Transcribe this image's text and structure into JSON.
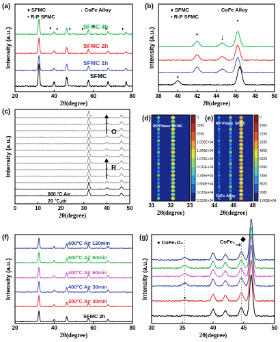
{
  "chart_data": [
    {
      "panel": "(a)",
      "type": "line",
      "xlabel": "2θ(degree)",
      "ylabel": "Intensity (a.u.)",
      "xlim": [
        20,
        80
      ],
      "xticks": [
        "20",
        "40",
        "60",
        "80"
      ],
      "legend": [
        {
          "symbol": "♦",
          "label": "SFMC"
        },
        {
          "symbol": "↓",
          "label": "CoFe Alloy"
        },
        {
          "symbol": "•",
          "label": "R-P SFMC"
        }
      ],
      "series": [
        {
          "name": "SFMC 4h",
          "color": "#22b14c"
        },
        {
          "name": "SFMC 2h",
          "color": "#e8262b"
        },
        {
          "name": "SFMC 1h",
          "color": "#3f51b5"
        },
        {
          "name": "SFMC",
          "color": "#000000"
        }
      ],
      "peaks_deg": [
        32.2,
        40.0,
        46.4,
        57.5,
        67.5,
        76.8
      ]
    },
    {
      "panel": "(b)",
      "type": "line",
      "xlabel": "2θ(degree)",
      "ylabel": "Intensity (a.u.)",
      "xlim": [
        38,
        50
      ],
      "xticks": [
        "38",
        "40",
        "42",
        "44",
        "46",
        "48",
        "50"
      ],
      "legend": [
        {
          "symbol": "♦",
          "label": "SFMC"
        },
        {
          "symbol": "↓",
          "label": "CoFe Alloy"
        },
        {
          "symbol": "•",
          "label": "R-P SFMC"
        }
      ],
      "series_colors": [
        "#22b14c",
        "#e8262b",
        "#3f51b5",
        "#000000"
      ],
      "peaks_deg": [
        40.0,
        42.0,
        44.6,
        46.2
      ]
    },
    {
      "panel": "(c)",
      "type": "line",
      "xlabel": "2θ(degree)",
      "ylabel": "Intensity (a.u.)",
      "xlim": [
        0,
        50
      ],
      "xticks": [
        "0",
        "10",
        "20",
        "30",
        "40",
        "50"
      ],
      "labels": {
        "top_arrow": "O",
        "mid_arrow": "R",
        "air800": "800 °C Air",
        "air20": "20 °C air"
      },
      "curve_count": 13
    },
    {
      "panel": "(d)",
      "type": "heatmap",
      "xlabel": "2θ(degree)",
      "xticks": [
        "31",
        "32",
        "33"
      ],
      "annotations": [
        "RP Phase",
        "SFMC"
      ],
      "colorbar": [
        "0",
        "3350",
        "6700",
        "1.005E+04",
        "1.340E+04",
        "1.675E+04",
        "2.010E+04",
        "2.345E+04",
        "2.680E+04",
        "3.015E+04",
        "3.350E+04"
      ]
    },
    {
      "panel": "(e)",
      "type": "heatmap",
      "xlabel": "2θ(degree)",
      "xticks": [
        "44",
        "46",
        "48"
      ],
      "annotations": [
        "RP Phase",
        "SFMC",
        "CoFe Alloy"
      ],
      "colorbar": [
        "0",
        "1065",
        "2130",
        "3195",
        "4260",
        "5325",
        "6390",
        "7455",
        "8520",
        "9585",
        "1.065E+04"
      ]
    },
    {
      "panel": "(f)",
      "type": "line",
      "xlabel": "2θ(degree)",
      "ylabel": "Intensity (a.u.)",
      "xlim": [
        20,
        80
      ],
      "xticks": [
        "20",
        "40",
        "60",
        "80"
      ],
      "series": [
        {
          "name": "600°C Air 120min",
          "color": "#283593"
        },
        {
          "name": "600°C Air 60min",
          "color": "#22b14c"
        },
        {
          "name": "400°C Air 60min",
          "color": "#c04bb8"
        },
        {
          "name": "400°C Air 30min",
          "color": "#3f51b5"
        },
        {
          "name": "200°C Air 30min",
          "color": "#e8262b"
        },
        {
          "name": "SFMC 2h",
          "color": "#000000"
        }
      ],
      "peaks_deg": [
        32.2,
        40.0,
        46.4,
        57.5,
        67.5
      ]
    },
    {
      "panel": "(g)",
      "type": "line",
      "xlabel": "2θ(degree)",
      "ylabel": "Intensity (a.u.)",
      "xlim": [
        30,
        50
      ],
      "xticks": [
        "30",
        "35",
        "40",
        "45",
        "50"
      ],
      "legend": [
        {
          "symbol": "●",
          "label": "CoFe₂O₄"
        },
        {
          "symbol": "",
          "label": "CoFe₂"
        }
      ],
      "series_colors": [
        "#283593",
        "#22b14c",
        "#c04bb8",
        "#3f51b5",
        "#e8262b",
        "#000000"
      ],
      "peaks_deg": [
        35.4,
        40.0,
        42.0,
        44.6,
        46.2
      ]
    }
  ]
}
